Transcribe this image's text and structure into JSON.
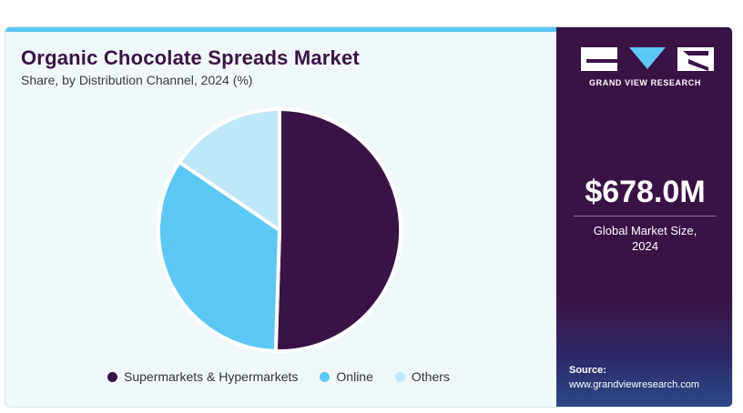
{
  "header": {
    "title": "Organic Chocolate Spreads Market",
    "subtitle": "Share, by Distribution Channel, 2024 (%)"
  },
  "chart_data": {
    "type": "pie",
    "categories": [
      "Supermarkets & Hypermarkets",
      "Online",
      "Others"
    ],
    "values": [
      50.5,
      34.0,
      15.5
    ],
    "colors": [
      "#3a1346",
      "#5bc8f5",
      "#bde8f9"
    ],
    "legend_position": "bottom"
  },
  "sidebar": {
    "brand": "GRAND VIEW RESEARCH",
    "market_value": "$678.0M",
    "market_label_line1": "Global Market Size,",
    "market_label_line2": "2024",
    "source_label": "Source:",
    "source_url": "www.grandviewresearch.com"
  },
  "colors": {
    "accent": "#5bc8f5",
    "brand_dark": "#3a1346"
  }
}
